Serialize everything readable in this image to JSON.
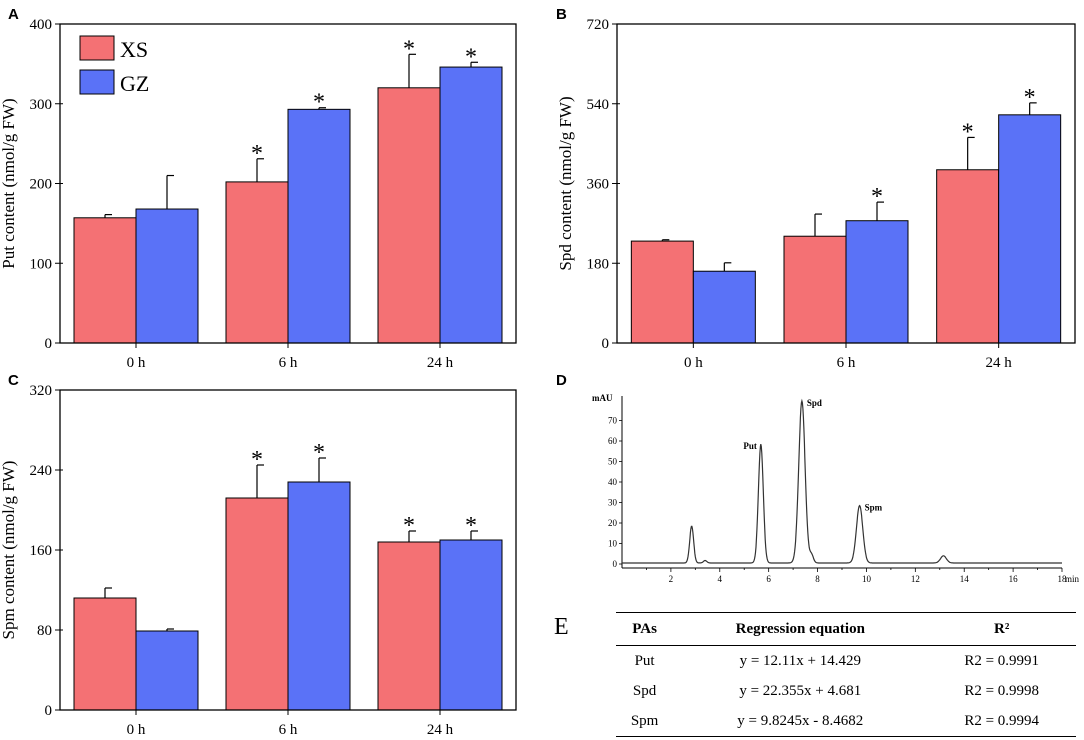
{
  "colors": {
    "xs": "#f47174",
    "gz": "#5a72f7",
    "axis": "#000000",
    "trace": "#333333"
  },
  "chart_data": [
    {
      "panel": "A",
      "type": "bar",
      "ylabel": "Put content (nmol/g FW)",
      "categories": [
        "0 h",
        "6 h",
        "24 h"
      ],
      "ylim": [
        0,
        400
      ],
      "yticks": [
        0,
        100,
        200,
        300,
        400
      ],
      "legend": {
        "position": "top-left",
        "entries": [
          "XS",
          "GZ"
        ]
      },
      "series": [
        {
          "name": "XS",
          "values": [
            157,
            202,
            320
          ],
          "errors": [
            4,
            29,
            42
          ],
          "significant": [
            false,
            true,
            true
          ]
        },
        {
          "name": "GZ",
          "values": [
            168,
            293,
            346
          ],
          "errors": [
            42,
            2,
            6
          ],
          "significant": [
            false,
            true,
            true
          ]
        }
      ]
    },
    {
      "panel": "B",
      "type": "bar",
      "ylabel": "Spd content (nmol/g FW)",
      "categories": [
        "0 h",
        "6 h",
        "24 h"
      ],
      "ylim": [
        0,
        720
      ],
      "yticks": [
        0,
        180,
        360,
        540,
        720
      ],
      "series": [
        {
          "name": "XS",
          "values": [
            230,
            241,
            391
          ],
          "errors": [
            3,
            50,
            73
          ],
          "significant": [
            false,
            false,
            true
          ]
        },
        {
          "name": "GZ",
          "values": [
            162,
            276,
            515
          ],
          "errors": [
            19,
            42,
            27
          ],
          "significant": [
            false,
            true,
            true
          ]
        }
      ]
    },
    {
      "panel": "C",
      "type": "bar",
      "ylabel": "Spm content (nmol/g FW)",
      "categories": [
        "0 h",
        "6 h",
        "24 h"
      ],
      "ylim": [
        0,
        320
      ],
      "yticks": [
        0,
        80,
        160,
        240,
        320
      ],
      "series": [
        {
          "name": "XS",
          "values": [
            112,
            212,
            168
          ],
          "errors": [
            10,
            33,
            11
          ],
          "significant": [
            false,
            true,
            true
          ]
        },
        {
          "name": "GZ",
          "values": [
            79,
            228,
            170
          ],
          "errors": [
            2,
            24,
            9
          ],
          "significant": [
            false,
            true,
            true
          ]
        }
      ]
    },
    {
      "panel": "D",
      "type": "line",
      "xlabel": "min",
      "ylabel": "mAU",
      "xlim": [
        0,
        18
      ],
      "ylim": [
        0,
        80
      ],
      "xticks": [
        2,
        4,
        6,
        8,
        10,
        12,
        14,
        16,
        18
      ],
      "yticks": [
        0,
        10,
        20,
        30,
        40,
        50,
        60,
        70
      ],
      "peaks": [
        {
          "name": "",
          "x": 2.85,
          "height": 18,
          "width": 0.08
        },
        {
          "name": "",
          "x": 3.4,
          "height": 1.2,
          "width": 0.07
        },
        {
          "name": "Put",
          "x": 5.68,
          "height": 58,
          "width": 0.1
        },
        {
          "name": "Spd",
          "x": 7.36,
          "height": 79,
          "width": 0.13
        },
        {
          "name": "",
          "x": 7.75,
          "height": 4,
          "width": 0.08
        },
        {
          "name": "Spm",
          "x": 9.72,
          "height": 28,
          "width": 0.13
        },
        {
          "name": "",
          "x": 13.15,
          "height": 3.5,
          "width": 0.12
        }
      ]
    },
    {
      "panel": "E",
      "type": "table",
      "columns": [
        "PAs",
        "Regression equation",
        "R²"
      ],
      "rows": [
        [
          "Put",
          "y = 12.11x + 14.429",
          "R2 = 0.9991"
        ],
        [
          "Spd",
          "y = 22.355x + 4.681",
          "R2 = 0.9998"
        ],
        [
          "Spm",
          "y = 9.8245x - 8.4682",
          "R2 = 0.9994"
        ]
      ]
    }
  ]
}
